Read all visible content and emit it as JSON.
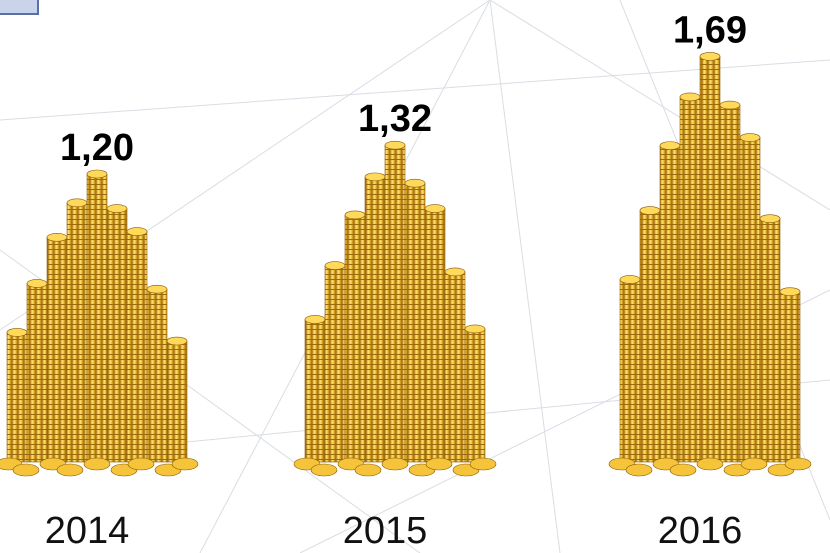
{
  "chart_data": {
    "type": "pictogram",
    "categories": [
      "2014",
      "2015",
      "2016"
    ],
    "values": [
      1.2,
      1.32,
      1.69
    ],
    "value_labels": [
      "1,20",
      "1,32",
      "1,69"
    ],
    "color": "#e8b429"
  }
}
